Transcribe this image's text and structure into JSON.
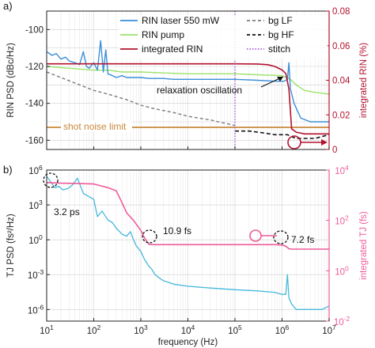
{
  "chart_data": [
    {
      "panel_label": "a)",
      "type": "line",
      "ylabel": "RIN PSD (dBc/Hz)",
      "ylabel_right": "integrated RIN (%)",
      "xscale": "log",
      "xlim": [
        10,
        10000000
      ],
      "ylim": [
        -165,
        -90
      ],
      "ylim_right": [
        0,
        0.08
      ],
      "yticks": [
        -100,
        -120,
        -140,
        -160
      ],
      "yticks_right": [
        "0",
        "0.02",
        "0.04",
        "0.06",
        "0.08"
      ],
      "yticks_right_values": [
        0,
        0.02,
        0.04,
        0.06,
        0.08
      ],
      "legend": {
        "placement": "top",
        "entries": [
          {
            "name": "RIN laser 550 mW",
            "color": "#3a8fd9",
            "style": "solid"
          },
          {
            "name": "RIN pump",
            "color": "#9be36b",
            "style": "solid"
          },
          {
            "name": "integrated RIN",
            "color": "#b3122e",
            "style": "solid"
          },
          {
            "name": "bg LF",
            "color": "#7a7a7a",
            "style": "dashed"
          },
          {
            "name": "bg HF",
            "color": "#111111",
            "style": "dashed"
          },
          {
            "name": "stitch",
            "color": "#a85fd6",
            "style": "dotted"
          }
        ]
      },
      "annotations": [
        {
          "text": "relaxation oscillation",
          "x": 80000,
          "y": -137
        },
        {
          "text": "shot noise limit",
          "x": 30,
          "y": -157
        }
      ],
      "series": [
        {
          "name": "RIN laser 550 mW",
          "color": "#3a8fd9",
          "x": [
            10,
            13,
            16,
            20,
            25,
            30,
            40,
            50,
            60,
            70,
            80,
            100,
            120,
            140,
            160,
            180,
            200,
            250,
            300,
            400,
            500,
            700,
            1000,
            1500,
            2000,
            3000,
            5000,
            10000,
            30000,
            100000,
            300000,
            700000,
            900000,
            1100000,
            1300000,
            1400000,
            1500000,
            1800000,
            2500000,
            4000000,
            7000000,
            10000000
          ],
          "y": [
            -112,
            -114,
            -113,
            -116,
            -115,
            -117,
            -118,
            -119,
            -112,
            -120,
            -121,
            -118,
            -122,
            -106,
            -123,
            -111,
            -124,
            -125,
            -126,
            -125,
            -126,
            -126,
            -126,
            -126.5,
            -126.5,
            -126.5,
            -127,
            -127,
            -127,
            -127,
            -127.5,
            -128,
            -128,
            -128,
            -127,
            -118,
            -132,
            -140,
            -148,
            -150,
            -150,
            -150
          ]
        },
        {
          "name": "RIN pump",
          "color": "#9be36b",
          "x": [
            10,
            30,
            100,
            200,
            400,
            1000,
            3000,
            10000,
            30000,
            100000,
            300000,
            1000000,
            1500000,
            2000000,
            3000000,
            5000000,
            7000000,
            10000000
          ],
          "y": [
            -120,
            -121,
            -122,
            -122,
            -123,
            -123,
            -123.5,
            -124,
            -124,
            -124,
            -124.5,
            -125,
            -127,
            -130,
            -133,
            -134,
            -134.5,
            -135
          ]
        },
        {
          "name": "bg LF",
          "color": "#7a7a7a",
          "x": [
            10,
            20,
            50,
            100,
            200,
            500,
            1000,
            2000,
            5000,
            10000,
            30000,
            100000
          ],
          "y": [
            -123,
            -126,
            -130,
            -133,
            -135,
            -138,
            -141,
            -143,
            -145,
            -147,
            -149,
            -152
          ]
        },
        {
          "name": "bg HF",
          "color": "#111111",
          "x": [
            100000,
            200000,
            400000,
            700000,
            1000000,
            1300000,
            1600000,
            2000000,
            3000000,
            5000000,
            7000000,
            10000000
          ],
          "y": [
            -155,
            -155,
            -156,
            -157,
            -157,
            -157,
            -158,
            -159,
            -159,
            -159,
            -158,
            -157
          ]
        },
        {
          "name": "shot noise limit",
          "color": "#c8883a",
          "x": [
            10,
            10000000
          ],
          "y": [
            -153,
            -153
          ]
        },
        {
          "name": "integrated RIN",
          "color": "#b3122e",
          "axis": "right",
          "x": [
            10,
            100,
            1000,
            10000,
            100000,
            300000,
            500000,
            700000,
            1000000,
            1200000,
            1400000,
            1600000,
            2000000,
            3000000,
            10000000
          ],
          "y": [
            0.0495,
            0.0495,
            0.0495,
            0.0495,
            0.0495,
            0.0494,
            0.049,
            0.048,
            0.046,
            0.044,
            0.035,
            0.012,
            0.01,
            0.009,
            0.009
          ]
        }
      ],
      "stitch_x": 100000
    },
    {
      "panel_label": "b)",
      "type": "line",
      "xlabel": "frequency (Hz)",
      "ylabel": "TJ PSD (fs²/Hz)",
      "ylabel_right": "integrated TJ (fs)",
      "xscale": "log",
      "yscale": "log",
      "xlim": [
        10,
        10000000
      ],
      "ylim": [
        1e-07,
        1000000
      ],
      "ylim_right": [
        0.01,
        10000
      ],
      "xticks": [
        "10^1",
        "10^2",
        "10^3",
        "10^4",
        "10^5",
        "10^6",
        "10^7"
      ],
      "yticks": [
        "10^6",
        "10^3",
        "10^0",
        "10^-3",
        "10^-6"
      ],
      "yticks_right": [
        "10^4",
        "10^2",
        "10^0",
        "10^-2"
      ],
      "annotations": [
        {
          "text": "3.2 ps",
          "x": 14,
          "y": 0.3
        },
        {
          "text": "10.9 fs",
          "x": 3000,
          "y": 1.5
        },
        {
          "text": "7.2 fs",
          "x": 1500000,
          "y": 0.1
        }
      ],
      "series": [
        {
          "name": "TJ PSD",
          "color": "#46b8dc",
          "x": [
            10,
            12,
            15,
            18,
            22,
            28,
            35,
            45,
            60,
            80,
            100,
            120,
            150,
            200,
            250,
            300,
            400,
            500,
            600,
            700,
            800,
            1000,
            1200,
            1500,
            1700,
            2000,
            2500,
            3000,
            5000,
            10000,
            30000,
            100000,
            300000,
            700000,
            1000000,
            1200000,
            1300000,
            1400000,
            1600000,
            2000000,
            4000000,
            7000000,
            10000000
          ],
          "y": [
            300000,
            100000,
            30000,
            40000,
            20000,
            25000,
            50000,
            200000,
            10000,
            5000,
            3000,
            100,
            300,
            50,
            30,
            10,
            3,
            2,
            5,
            1,
            0.3,
            0.1,
            0.02,
            0.005,
            0.003,
            0.001,
            0.0005,
            0.0003,
            0.00015,
            0.0001,
            7e-05,
            5e-05,
            4e-05,
            3e-05,
            2e-05,
            2e-05,
            0.001,
            1e-05,
            3e-06,
            1e-06,
            1e-06,
            1e-06,
            2e-06
          ]
        },
        {
          "name": "integrated TJ",
          "color": "#ee5b9a",
          "axis": "right",
          "x": [
            10,
            20,
            50,
            100,
            200,
            300,
            400,
            500,
            700,
            1000,
            1200,
            1500,
            2000,
            3000,
            10000,
            100000,
            300000,
            700000,
            1000000,
            1200000,
            1400000,
            1600000,
            2000000,
            5000000,
            10000000
          ],
          "y": [
            3200,
            3000,
            2900,
            2800,
            2000,
            1500,
            500,
            200,
            100,
            40,
            20,
            11,
            10.9,
            10.9,
            10.9,
            10.9,
            10.9,
            10.9,
            10.5,
            9.5,
            7.5,
            7.2,
            7.2,
            7.2,
            7.2
          ]
        }
      ]
    }
  ],
  "colors": {
    "laser": "#3a8fd9",
    "pump": "#9be36b",
    "integrated_rin": "#b3122e",
    "bg_lf": "#7a7a7a",
    "bg_hf": "#111111",
    "stitch": "#a85fd6",
    "shot_noise": "#c8883a",
    "tj_psd": "#46b8dc",
    "integrated_tj": "#ee5b9a"
  }
}
